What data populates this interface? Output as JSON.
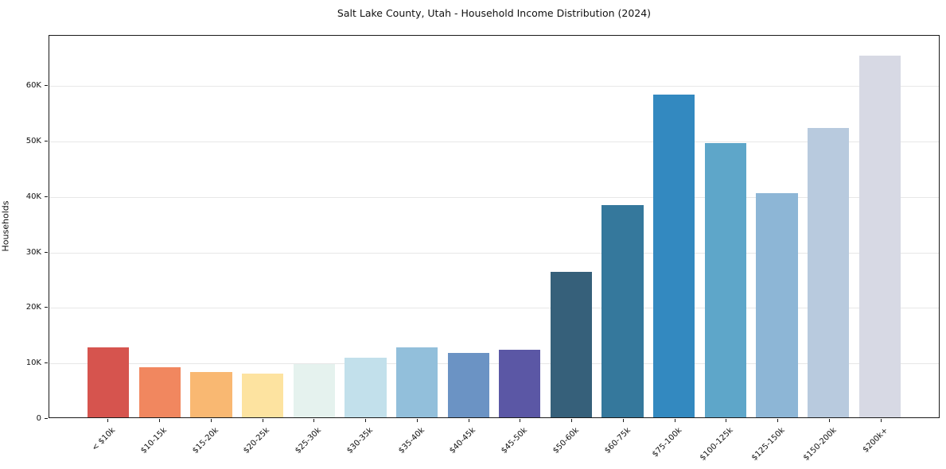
{
  "chart_data": {
    "type": "bar",
    "title": "Salt Lake County, Utah - Household Income Distribution (2024)",
    "xlabel": "",
    "ylabel": "Households",
    "categories": [
      "< $10k",
      "$10-15k",
      "$15-20k",
      "$20-25k",
      "$25-30k",
      "$30-35k",
      "$35-40k",
      "$40-45k",
      "$45-50k",
      "$50-60k",
      "$60-75k",
      "$75-100k",
      "$100-125k",
      "$125-150k",
      "$150-200k",
      "$200k+"
    ],
    "values": [
      12700,
      9000,
      8200,
      7900,
      9700,
      10800,
      12700,
      11700,
      12300,
      26300,
      38400,
      58500,
      49700,
      40600,
      52400,
      65500
    ],
    "bar_colors": [
      "#d6544e",
      "#f1875f",
      "#f9b872",
      "#fde3a0",
      "#e5f2ee",
      "#c2e0eb",
      "#92bfdb",
      "#6b93c4",
      "#5b57a5",
      "#36607a",
      "#35789c",
      "#3389c0",
      "#5ea6c9",
      "#8db6d6",
      "#b8cade",
      "#d7d9e4"
    ],
    "ylim": [
      0,
      69100
    ],
    "yticks": [
      {
        "value": 0,
        "label": "0"
      },
      {
        "value": 10000,
        "label": "10K"
      },
      {
        "value": 20000,
        "label": "20K"
      },
      {
        "value": 30000,
        "label": "30K"
      },
      {
        "value": 40000,
        "label": "40K"
      },
      {
        "value": 50000,
        "label": "50K"
      },
      {
        "value": 60000,
        "label": "60K"
      }
    ],
    "grid": "horizontal",
    "legend": "none",
    "background": "#ffffff"
  }
}
